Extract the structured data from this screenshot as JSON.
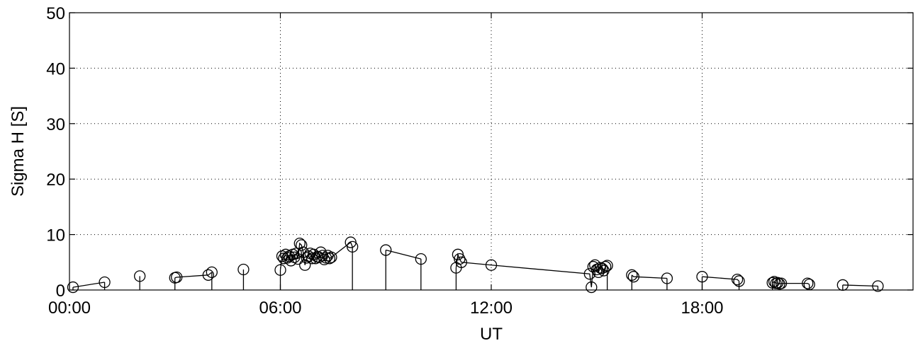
{
  "chart_data": {
    "type": "scatter",
    "title": "",
    "xlabel": "UT",
    "ylabel": "Sigma H [S]",
    "xlim": [
      0,
      24
    ],
    "ylim": [
      0,
      50
    ],
    "xticks": [
      {
        "value": 0,
        "label": "00:00"
      },
      {
        "value": 6,
        "label": "06:00"
      },
      {
        "value": 12,
        "label": "12:00"
      },
      {
        "value": 18,
        "label": "18:00"
      }
    ],
    "yticks": [
      {
        "value": 0,
        "label": "0"
      },
      {
        "value": 10,
        "label": "10"
      },
      {
        "value": 20,
        "label": "20"
      },
      {
        "value": 30,
        "label": "30"
      },
      {
        "value": 40,
        "label": "40"
      },
      {
        "value": 50,
        "label": "50"
      }
    ],
    "grid": true,
    "color": "#000000",
    "marker": "open-circle",
    "segments": [
      [
        [
          0.1,
          0.5
        ],
        [
          1.0,
          1.4
        ]
      ],
      [
        [
          2.0,
          2.5
        ]
      ],
      [
        [
          3.0,
          2.2
        ],
        [
          3.05,
          2.3
        ],
        [
          3.95,
          2.7
        ],
        [
          4.05,
          3.2
        ]
      ],
      [
        [
          4.95,
          3.7
        ]
      ],
      [
        [
          6.0,
          3.6
        ],
        [
          6.05,
          6.1
        ],
        [
          6.1,
          5.7
        ],
        [
          6.15,
          6.4
        ],
        [
          6.2,
          5.8
        ],
        [
          6.25,
          6.1
        ],
        [
          6.3,
          5.3
        ],
        [
          6.35,
          6.4
        ],
        [
          6.4,
          5.9
        ],
        [
          6.45,
          6.6
        ],
        [
          6.5,
          5.6
        ],
        [
          6.55,
          8.4
        ],
        [
          6.6,
          8.1
        ],
        [
          6.65,
          6.8
        ],
        [
          6.7,
          4.5
        ],
        [
          6.75,
          5.8
        ],
        [
          6.8,
          6.1
        ],
        [
          6.85,
          6.6
        ],
        [
          6.9,
          5.7
        ],
        [
          6.95,
          6.4
        ],
        [
          7.0,
          5.7
        ],
        [
          7.05,
          6.0
        ],
        [
          7.1,
          5.9
        ],
        [
          7.15,
          6.8
        ],
        [
          7.2,
          6.2
        ],
        [
          7.25,
          5.5
        ],
        [
          7.3,
          5.8
        ],
        [
          7.35,
          6.2
        ],
        [
          7.4,
          5.7
        ],
        [
          7.45,
          5.9
        ],
        [
          8.0,
          8.6
        ],
        [
          8.05,
          7.8
        ]
      ],
      [
        [
          9.0,
          7.2
        ],
        [
          10.0,
          5.6
        ]
      ],
      [
        [
          11.0,
          4.0
        ],
        [
          11.05,
          6.4
        ],
        [
          11.1,
          5.6
        ],
        [
          11.15,
          5.0
        ],
        [
          12.0,
          4.5
        ],
        [
          14.8,
          2.9
        ],
        [
          14.85,
          0.5
        ],
        [
          14.9,
          4.2
        ],
        [
          14.95,
          4.5
        ],
        [
          15.0,
          3.7
        ],
        [
          15.05,
          3.2
        ],
        [
          15.1,
          4.0
        ],
        [
          15.15,
          3.9
        ],
        [
          15.2,
          3.5
        ],
        [
          15.25,
          4.2
        ],
        [
          15.3,
          4.4
        ]
      ],
      [
        [
          16.0,
          2.7
        ],
        [
          16.05,
          2.4
        ],
        [
          17.0,
          2.1
        ]
      ],
      [
        [
          18.0,
          2.4
        ],
        [
          19.0,
          1.9
        ],
        [
          19.05,
          1.6
        ]
      ],
      [
        [
          20.0,
          1.3
        ],
        [
          20.05,
          1.5
        ],
        [
          20.1,
          1.2
        ],
        [
          20.15,
          1.3
        ],
        [
          20.2,
          1.1
        ],
        [
          20.25,
          1.2
        ],
        [
          21.0,
          1.2
        ],
        [
          21.05,
          1.0
        ]
      ],
      [
        [
          22.0,
          0.9
        ],
        [
          23.0,
          0.7
        ]
      ]
    ]
  }
}
